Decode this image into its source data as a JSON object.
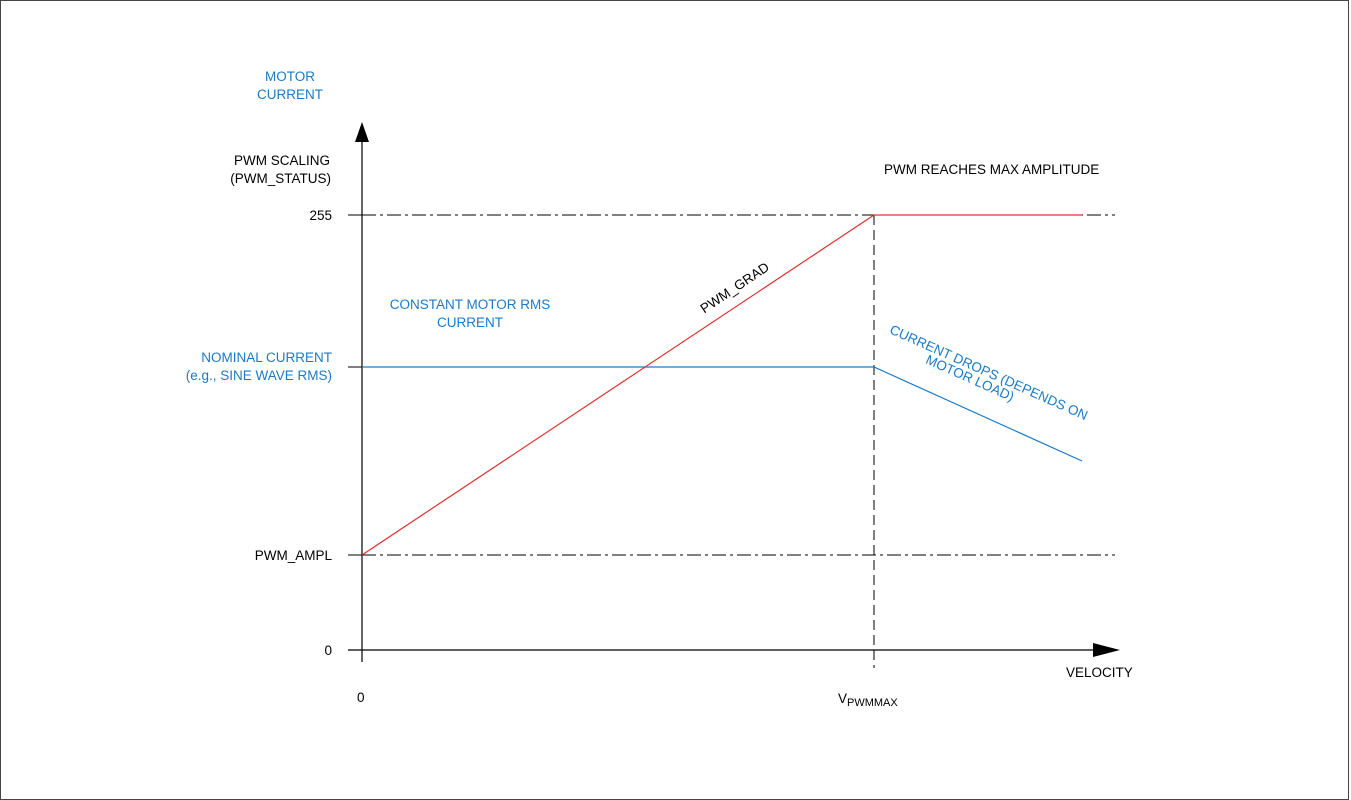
{
  "colors": {
    "current_line": "#1a7ac7",
    "pwm_line": "#e03030",
    "axis": "#000000"
  },
  "axis": {
    "y_title_current": [
      "MOTOR",
      "CURRENT"
    ],
    "y_title_pwm": [
      "PWM SCALING",
      "(PWM_STATUS)"
    ],
    "x_title": "VELOCITY",
    "y_ticks": {
      "max": "255",
      "nominal": [
        "NOMINAL CURRENT",
        "(e.g., SINE WAVE RMS)"
      ],
      "ampl": "PWM_AMPL",
      "zero": "0"
    },
    "x_ticks": {
      "zero": "0",
      "vmax_main": "V",
      "vmax_sub": "PWMMAX"
    }
  },
  "annotations": {
    "pwm_max": "PWM REACHES MAX AMPLITUDE",
    "pwm_grad": "PWM_GRAD",
    "constant_current": [
      "CONSTANT MOTOR RMS",
      "CURRENT"
    ],
    "current_drops": [
      "CURRENT DROPS (DEPENDS ON",
      "MOTOR LOAD)"
    ]
  }
}
